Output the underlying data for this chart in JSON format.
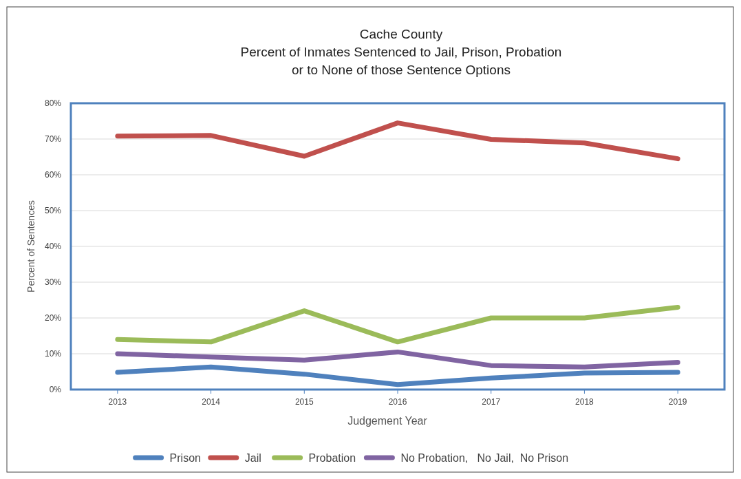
{
  "chart_data": {
    "type": "line",
    "title": "Cache County\nPercent of Inmates Sentenced to Jail, Prison, Probation\nor to None of those Sentence Options",
    "xlabel": "Judgement Year",
    "ylabel": "Percent of Sentences",
    "categories": [
      "2013",
      "2014",
      "2015",
      "2016",
      "2017",
      "2018",
      "2019"
    ],
    "series": [
      {
        "name": "Prison",
        "color": "#4f81bd",
        "values": [
          4.8,
          6.3,
          4.3,
          1.4,
          3.2,
          4.6,
          4.8
        ]
      },
      {
        "name": "Jail",
        "color": "#c0504d",
        "values": [
          70.8,
          71,
          65.2,
          74.5,
          69.9,
          68.9,
          64.5
        ]
      },
      {
        "name": "Probation",
        "color": "#9bbb59",
        "values": [
          14,
          13.3,
          22,
          13.3,
          20,
          20,
          23
        ]
      },
      {
        "name": "No Probation,   No Jail,  No Prison",
        "color": "#8064a2",
        "values": [
          10,
          9.1,
          8.2,
          10.5,
          6.7,
          6.3,
          7.6
        ]
      }
    ],
    "ylim": [
      0,
      80
    ],
    "yticks": [
      {
        "value": 0,
        "label": "0%"
      },
      {
        "value": 10,
        "label": "10%"
      },
      {
        "value": 20,
        "label": "20%"
      },
      {
        "value": 30,
        "label": "30%"
      },
      {
        "value": 40,
        "label": "40%"
      },
      {
        "value": 50,
        "label": "50%"
      },
      {
        "value": 60,
        "label": "60%"
      },
      {
        "value": 70,
        "label": "70%"
      },
      {
        "value": 80,
        "label": "80%"
      }
    ],
    "grid": "y",
    "legend": "bottom",
    "marker": "none",
    "line_style": "solid"
  }
}
